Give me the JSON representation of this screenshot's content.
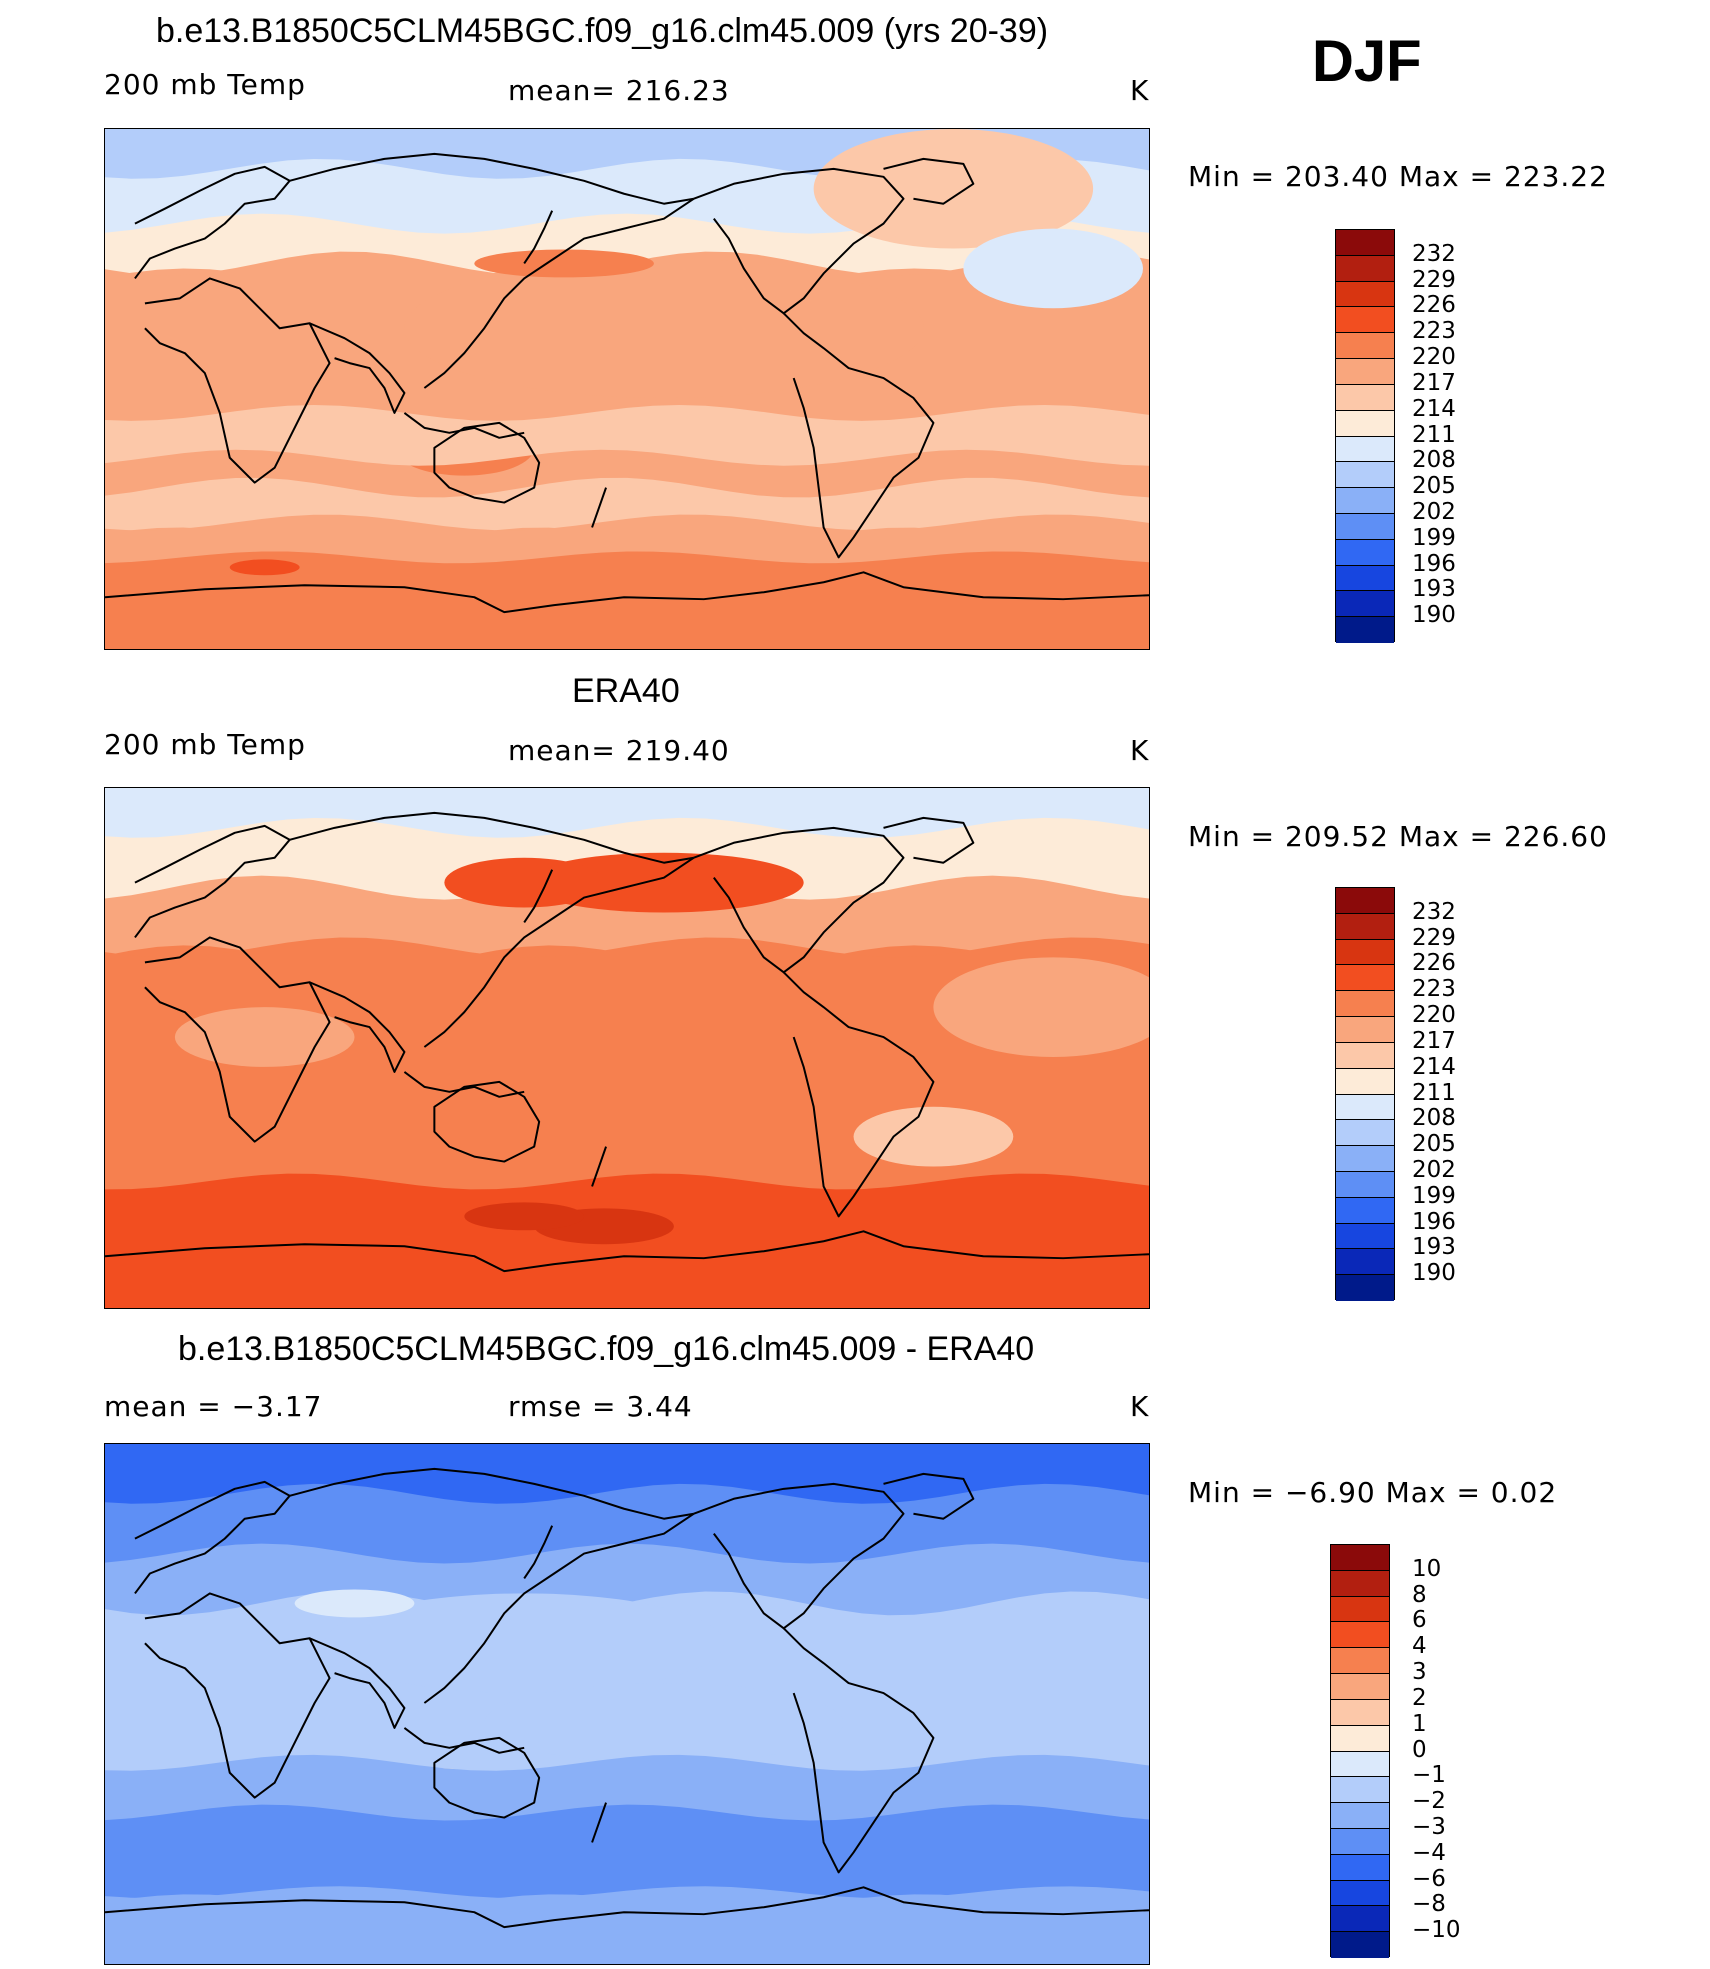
{
  "season": "DJF",
  "panels": [
    {
      "id": "model",
      "title": "b.e13.B1850C5CLM45BGC.f09_g16.clm45.009 (yrs 20-39)",
      "left_label": "200 mb Temp",
      "center_label": "mean=  216.23",
      "units": "K",
      "minmax": "Min  =  203.40  Max  =  223.22",
      "scheme": "abs",
      "map_style": "model"
    },
    {
      "id": "obs",
      "title": "ERA40",
      "left_label": "200 mb Temp",
      "center_label": "mean=  219.40",
      "units": "K",
      "minmax": "Min  =  209.52  Max  =  226.60",
      "scheme": "abs",
      "map_style": "obs"
    },
    {
      "id": "diff",
      "title": "b.e13.B1850C5CLM45BGC.f09_g16.clm45.009 - ERA40",
      "left_label": "mean  =     −3.17",
      "center_label": "rmse  =      3.44",
      "units": "K",
      "minmax": "Min  =    −6.90  Max  =     0.02",
      "scheme": "diff",
      "map_style": "diff"
    }
  ],
  "colorbars": {
    "abs": {
      "colors": [
        "#8b0a0a",
        "#b21f10",
        "#d83511",
        "#f24e20",
        "#f6804f",
        "#f9a67d",
        "#fcc8a9",
        "#fdebd8",
        "#dbe9fb",
        "#b3cdfa",
        "#8ab0f7",
        "#5e8ff5",
        "#3068f3",
        "#1746e0",
        "#0a28b8",
        "#001a8a"
      ],
      "labels": [
        "232",
        "229",
        "226",
        "223",
        "220",
        "217",
        "214",
        "211",
        "208",
        "205",
        "202",
        "199",
        "196",
        "193",
        "190"
      ]
    },
    "diff": {
      "colors": [
        "#8b0a0a",
        "#b21f10",
        "#d83511",
        "#f24e20",
        "#f6804f",
        "#f9a67d",
        "#fcc8a9",
        "#fdebd8",
        "#dbe9fb",
        "#b3cdfa",
        "#8ab0f7",
        "#5e8ff5",
        "#3068f3",
        "#1746e0",
        "#0a28b8",
        "#001a8a"
      ],
      "labels": [
        "10",
        "8",
        "6",
        "4",
        "3",
        "2",
        "1",
        "0",
        "−1",
        "−2",
        "−3",
        "−4",
        "−6",
        "−8",
        "−10"
      ]
    }
  }
}
